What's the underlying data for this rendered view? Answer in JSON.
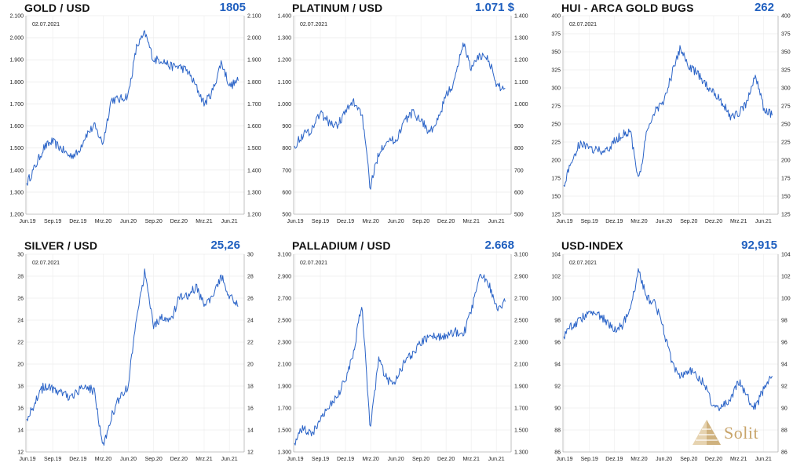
{
  "logo": {
    "text": "Solit"
  },
  "panels": [
    {
      "title": "GOLD / USD",
      "value": "1805",
      "date": "02.07.2021",
      "ylim": [
        1200,
        2100
      ],
      "yticks": [
        "1.200",
        "1.300",
        "1.400",
        "1.500",
        "1.600",
        "1.700",
        "1.800",
        "1.900",
        "2.000",
        "2.100"
      ],
      "xticks": [
        "Jun.19",
        "Sep.19",
        "Dez.19",
        "Mrz.20",
        "Jun.20",
        "Sep.20",
        "Dez.20",
        "Mrz.21",
        "Jun.21"
      ]
    },
    {
      "title": "PLATINUM / USD",
      "value": "1.071 $",
      "date": "02.07.2021",
      "ylim": [
        500,
        1400
      ],
      "yticks_left": [
        "500",
        "600",
        "700",
        "800",
        "900",
        "1.000",
        "1.100",
        "1.200",
        "1.300",
        "1.400"
      ],
      "yticks_right": [
        "500",
        "600",
        "700",
        "800",
        "900",
        "1.000",
        "1.100",
        "1.200",
        "1.300",
        "1.400"
      ],
      "xticks": [
        "Jun.19",
        "Sep.19",
        "Dez.19",
        "Mrz.20",
        "Jun.20",
        "Sep.20",
        "Dez.20",
        "Mrz.21",
        "Jun.21"
      ]
    },
    {
      "title": "HUI - ARCA GOLD BUGS",
      "value": "262",
      "date": "02.07.2021",
      "ylim": [
        125,
        400
      ],
      "yticks": [
        "125",
        "150",
        "175",
        "200",
        "225",
        "250",
        "275",
        "300",
        "325",
        "350",
        "375",
        "400"
      ],
      "xticks": [
        "Jun.19",
        "Sep.19",
        "Dez.19",
        "Mrz.20",
        "Jun.20",
        "Sep.20",
        "Dez.20",
        "Mrz.21",
        "Jun.21"
      ]
    },
    {
      "title": "SILVER / USD",
      "value": "25,26",
      "date": "02.07.2021",
      "ylim": [
        12,
        30
      ],
      "yticks": [
        "12",
        "14",
        "16",
        "18",
        "20",
        "22",
        "24",
        "26",
        "28",
        "30"
      ],
      "xticks": [
        "Jun.19",
        "Sep.19",
        "Dez.19",
        "Mrz.20",
        "Jun.20",
        "Sep.20",
        "Dez.20",
        "Mrz.21",
        "Jun.21"
      ]
    },
    {
      "title": "PALLADIUM / USD",
      "value": "2.668",
      "date": "02.07.2021",
      "ylim": [
        1300,
        3100
      ],
      "yticks": [
        "1.300",
        "1.500",
        "1.700",
        "1.900",
        "2.100",
        "2.300",
        "2.500",
        "2.700",
        "2.900",
        "3.100"
      ],
      "xticks": [
        "Jun.19",
        "Sep.19",
        "Dez.19",
        "Mrz.20",
        "Jun.20",
        "Sep.20",
        "Dez.20",
        "Mrz.21",
        "Jun.21"
      ]
    },
    {
      "title": "USD-INDEX",
      "value": "92,915",
      "date": "02.07.2021",
      "ylim": [
        86,
        104
      ],
      "yticks": [
        "86",
        "88",
        "90",
        "92",
        "94",
        "96",
        "98",
        "100",
        "102",
        "104"
      ],
      "xticks": [
        "Jun.19",
        "Sep.19",
        "Dez.19",
        "Mrz.20",
        "Jun.20",
        "Sep.20",
        "Dez.20",
        "Mrz.21",
        "Jun.21"
      ]
    }
  ],
  "chart_data": [
    {
      "type": "line",
      "title": "GOLD / USD",
      "ylim": [
        1200,
        2100
      ],
      "color": "#2a63c7",
      "x": [
        "2019-06",
        "2019-07",
        "2019-08",
        "2019-09",
        "2019-10",
        "2019-11",
        "2019-12",
        "2020-01",
        "2020-02",
        "2020-03",
        "2020-04",
        "2020-05",
        "2020-06",
        "2020-07",
        "2020-08",
        "2020-09",
        "2020-10",
        "2020-11",
        "2020-12",
        "2021-01",
        "2021-02",
        "2021-03",
        "2021-04",
        "2021-05",
        "2021-06",
        "2021-07"
      ],
      "y": [
        1340,
        1415,
        1500,
        1530,
        1500,
        1465,
        1475,
        1560,
        1600,
        1520,
        1720,
        1720,
        1740,
        1960,
        2020,
        1900,
        1900,
        1870,
        1870,
        1850,
        1780,
        1700,
        1760,
        1890,
        1780,
        1805
      ]
    },
    {
      "type": "line",
      "title": "PLATINUM / USD",
      "ylim": [
        500,
        1400
      ],
      "color": "#2a63c7",
      "x": [
        "2019-06",
        "2019-07",
        "2019-08",
        "2019-09",
        "2019-10",
        "2019-11",
        "2019-12",
        "2020-01",
        "2020-02",
        "2020-03",
        "2020-04",
        "2020-05",
        "2020-06",
        "2020-07",
        "2020-08",
        "2020-09",
        "2020-10",
        "2020-11",
        "2020-12",
        "2021-01",
        "2021-02",
        "2021-03",
        "2021-04",
        "2021-05",
        "2021-06",
        "2021-07"
      ],
      "y": [
        810,
        860,
        880,
        960,
        920,
        900,
        960,
        1010,
        960,
        620,
        780,
        840,
        830,
        920,
        960,
        930,
        870,
        920,
        1040,
        1100,
        1280,
        1160,
        1220,
        1210,
        1080,
        1071
      ]
    },
    {
      "type": "line",
      "title": "HUI - ARCA GOLD BUGS",
      "ylim": [
        125,
        400
      ],
      "color": "#2a63c7",
      "x": [
        "2019-06",
        "2019-07",
        "2019-08",
        "2019-09",
        "2019-10",
        "2019-11",
        "2019-12",
        "2020-01",
        "2020-02",
        "2020-03",
        "2020-04",
        "2020-05",
        "2020-06",
        "2020-07",
        "2020-08",
        "2020-09",
        "2020-10",
        "2020-11",
        "2020-12",
        "2021-01",
        "2021-02",
        "2021-03",
        "2021-04",
        "2021-05",
        "2021-06",
        "2021-07"
      ],
      "y": [
        165,
        200,
        225,
        215,
        215,
        210,
        225,
        235,
        240,
        170,
        240,
        270,
        280,
        320,
        355,
        330,
        320,
        305,
        295,
        280,
        260,
        265,
        280,
        320,
        270,
        262
      ]
    },
    {
      "type": "line",
      "title": "SILVER / USD",
      "ylim": [
        12,
        30
      ],
      "color": "#2a63c7",
      "x": [
        "2019-06",
        "2019-07",
        "2019-08",
        "2019-09",
        "2019-10",
        "2019-11",
        "2019-12",
        "2020-01",
        "2020-02",
        "2020-03",
        "2020-04",
        "2020-05",
        "2020-06",
        "2020-07",
        "2020-08",
        "2020-09",
        "2020-10",
        "2020-11",
        "2020-12",
        "2021-01",
        "2021-02",
        "2021-03",
        "2021-04",
        "2021-05",
        "2021-06",
        "2021-07"
      ],
      "y": [
        15.0,
        16.5,
        18.0,
        17.8,
        17.4,
        17.0,
        17.5,
        18.0,
        17.5,
        12.5,
        15.2,
        17.0,
        18.0,
        24.5,
        28.5,
        23.5,
        24.2,
        23.8,
        26.0,
        26.2,
        27.0,
        25.5,
        26.0,
        28.0,
        26.2,
        25.26
      ]
    },
    {
      "type": "line",
      "title": "PALLADIUM / USD",
      "ylim": [
        1300,
        3100
      ],
      "color": "#2a63c7",
      "x": [
        "2019-06",
        "2019-07",
        "2019-08",
        "2019-09",
        "2019-10",
        "2019-11",
        "2019-12",
        "2020-01",
        "2020-02",
        "2020-03",
        "2020-04",
        "2020-05",
        "2020-06",
        "2020-07",
        "2020-08",
        "2020-09",
        "2020-10",
        "2020-11",
        "2020-12",
        "2021-01",
        "2021-02",
        "2021-03",
        "2021-04",
        "2021-05",
        "2021-06",
        "2021-07"
      ],
      "y": [
        1380,
        1520,
        1450,
        1600,
        1700,
        1800,
        1950,
        2200,
        2650,
        1500,
        2150,
        1950,
        1950,
        2100,
        2200,
        2300,
        2350,
        2350,
        2350,
        2400,
        2350,
        2600,
        2900,
        2850,
        2600,
        2668
      ]
    },
    {
      "type": "line",
      "title": "USD-INDEX",
      "ylim": [
        86,
        104
      ],
      "color": "#2a63c7",
      "x": [
        "2019-06",
        "2019-07",
        "2019-08",
        "2019-09",
        "2019-10",
        "2019-11",
        "2019-12",
        "2020-01",
        "2020-02",
        "2020-03",
        "2020-04",
        "2020-05",
        "2020-06",
        "2020-07",
        "2020-08",
        "2020-09",
        "2020-10",
        "2020-11",
        "2020-12",
        "2021-01",
        "2021-02",
        "2021-03",
        "2021-04",
        "2021-05",
        "2021-06",
        "2021-07"
      ],
      "y": [
        96.5,
        97.5,
        98.0,
        98.8,
        98.5,
        98.0,
        97.0,
        97.5,
        99.0,
        102.5,
        100.0,
        99.5,
        97.0,
        94.0,
        93.0,
        93.5,
        93.0,
        92.0,
        90.0,
        90.2,
        90.8,
        92.5,
        91.0,
        90.0,
        91.8,
        92.915
      ]
    }
  ]
}
